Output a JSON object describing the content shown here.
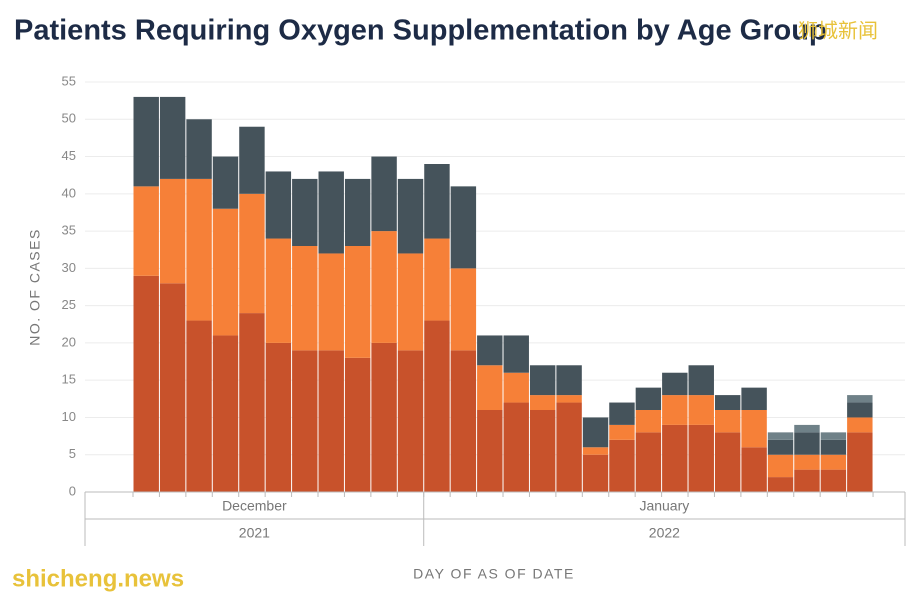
{
  "chart_data": {
    "type": "stacked_bar",
    "title": "Patients Requiring Oxygen Supplementation by Age Group",
    "watermarks": [
      "狮城新闻",
      "shicheng.news"
    ],
    "ylabel": "NO. OF CASES",
    "xlabel": "DAY OF AS OF DATE",
    "categories": [
      null,
      null,
      null,
      null,
      null,
      null,
      null,
      null,
      null,
      null,
      null,
      null,
      null,
      null,
      null,
      null,
      null,
      null,
      null,
      null,
      null,
      null,
      null,
      null,
      null,
      null,
      null,
      null
    ],
    "groups": [
      {
        "month": "December",
        "year": "2021",
        "count": 11
      },
      {
        "month": "January",
        "year": "2022",
        "count": 17
      }
    ],
    "series": [
      {
        "color": "#c8522b",
        "values": [
          29,
          28,
          23,
          21,
          24,
          20,
          19,
          19,
          18,
          20,
          19,
          23,
          19,
          11,
          12,
          11,
          12,
          5,
          7,
          8,
          9,
          9,
          8,
          6,
          2,
          3,
          3,
          8
        ]
      },
      {
        "color": "#f68038",
        "values": [
          12,
          14,
          19,
          17,
          16,
          14,
          14,
          13,
          15,
          15,
          13,
          11,
          11,
          6,
          4,
          2,
          1,
          1,
          2,
          3,
          4,
          4,
          3,
          5,
          3,
          2,
          2,
          2
        ]
      },
      {
        "color": "#45535b",
        "values": [
          12,
          11,
          8,
          7,
          9,
          9,
          9,
          11,
          9,
          10,
          10,
          10,
          11,
          4,
          5,
          4,
          4,
          4,
          3,
          3,
          3,
          4,
          2,
          3,
          2,
          3,
          2,
          2
        ]
      },
      {
        "color": "#6f8188",
        "values": [
          0,
          0,
          0,
          0,
          0,
          0,
          0,
          0,
          0,
          0,
          0,
          0,
          0,
          0,
          0,
          0,
          0,
          0,
          0,
          0,
          0,
          0,
          0,
          0,
          1,
          1,
          1,
          1
        ]
      }
    ],
    "ylim": [
      0,
      55
    ],
    "yticks": [
      0,
      5,
      10,
      15,
      20,
      25,
      30,
      35,
      40,
      45,
      50,
      55
    ],
    "grid": true
  }
}
